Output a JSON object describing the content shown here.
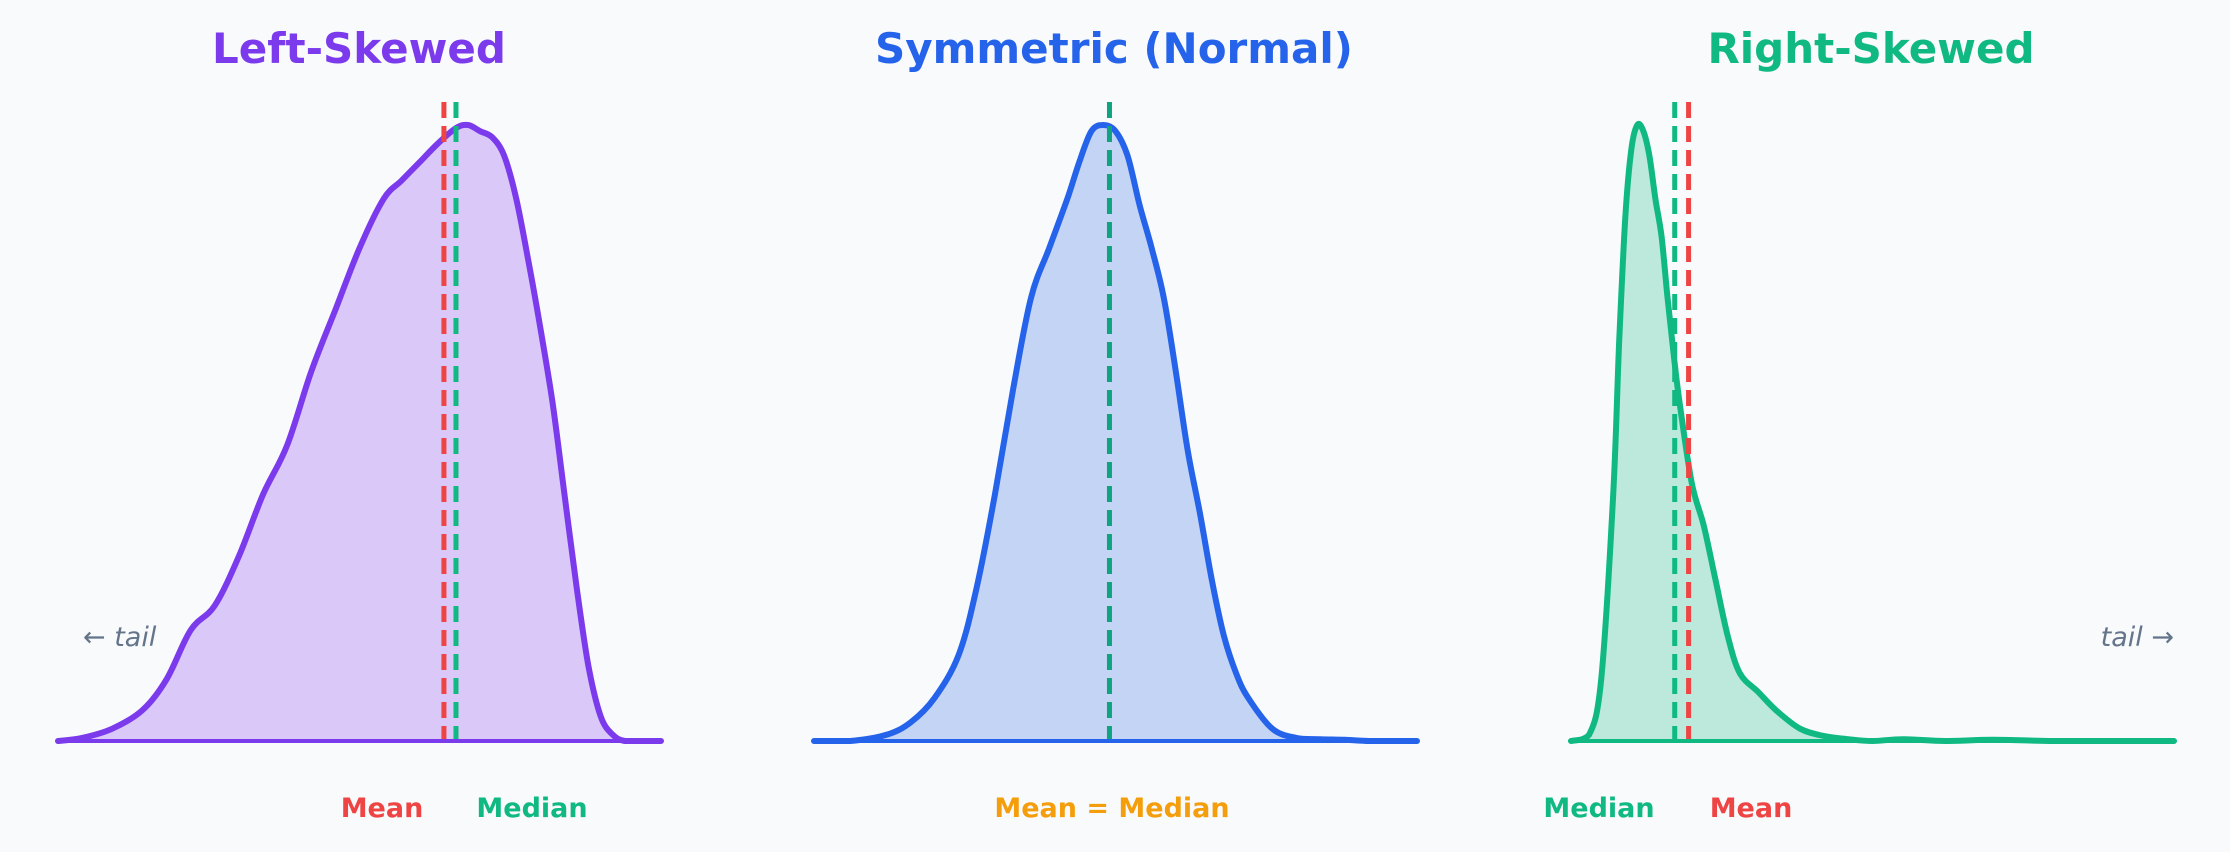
{
  "figure": {
    "background": "#f8fafc"
  },
  "panels": {
    "left": {
      "title": "Left-Skewed",
      "color": "#7c3aed",
      "fill": "#d9c8f8",
      "mean_label": "Mean",
      "median_label": "Median",
      "tail_label": "← tail"
    },
    "center": {
      "title": "Symmetric (Normal)",
      "color": "#2563eb",
      "fill": "#c3d4f5",
      "equal_label": "Mean = Median"
    },
    "right": {
      "title": "Right-Skewed",
      "color": "#10b981",
      "fill": "#bce9db",
      "mean_label": "Mean",
      "median_label": "Median",
      "tail_label": "tail →"
    }
  },
  "colors": {
    "mean": "#ef4444",
    "median": "#10b981",
    "median_symmetric": "#10a37f",
    "equal": "#f59e0b",
    "tail": "#64748b"
  },
  "chart_data": [
    {
      "type": "area",
      "title": "Left-Skewed",
      "xlim": [
        0,
        1
      ],
      "ylim": [
        0,
        1
      ],
      "x": [
        0.0,
        0.04,
        0.09,
        0.14,
        0.18,
        0.22,
        0.26,
        0.3,
        0.34,
        0.38,
        0.42,
        0.46,
        0.5,
        0.54,
        0.57,
        0.6,
        0.63,
        0.66,
        0.68,
        0.7,
        0.72,
        0.74,
        0.76,
        0.78,
        0.8,
        0.82,
        0.84,
        0.86,
        0.88,
        0.9,
        0.92,
        0.94,
        0.97,
        1.0
      ],
      "y": [
        0.0,
        0.005,
        0.02,
        0.05,
        0.1,
        0.18,
        0.22,
        0.3,
        0.4,
        0.48,
        0.6,
        0.7,
        0.8,
        0.88,
        0.91,
        0.94,
        0.97,
        0.995,
        1.0,
        0.99,
        0.98,
        0.95,
        0.88,
        0.78,
        0.67,
        0.55,
        0.4,
        0.25,
        0.12,
        0.04,
        0.01,
        0.0,
        0.0,
        0.0
      ],
      "mean": 0.64,
      "median": 0.66
    },
    {
      "type": "area",
      "title": "Symmetric (Normal)",
      "xlim": [
        0,
        1
      ],
      "ylim": [
        0,
        1
      ],
      "x": [
        0.0,
        0.06,
        0.12,
        0.16,
        0.2,
        0.24,
        0.27,
        0.3,
        0.33,
        0.36,
        0.39,
        0.42,
        0.44,
        0.46,
        0.48,
        0.5,
        0.52,
        0.54,
        0.56,
        0.58,
        0.6,
        0.62,
        0.64,
        0.66,
        0.68,
        0.7,
        0.72,
        0.76,
        0.8,
        0.84,
        0.88,
        0.92,
        0.96,
        1.0
      ],
      "y": [
        0.0,
        0.0,
        0.01,
        0.03,
        0.07,
        0.14,
        0.25,
        0.4,
        0.57,
        0.72,
        0.8,
        0.88,
        0.94,
        0.99,
        1.0,
        0.99,
        0.95,
        0.87,
        0.8,
        0.72,
        0.6,
        0.47,
        0.37,
        0.26,
        0.17,
        0.11,
        0.07,
        0.02,
        0.005,
        0.003,
        0.002,
        0.0,
        0.0,
        0.0
      ],
      "mean": 0.49,
      "median": 0.49
    },
    {
      "type": "area",
      "title": "Right-Skewed",
      "xlim": [
        0,
        1
      ],
      "ylim": [
        0,
        1
      ],
      "x": [
        0.0,
        0.03,
        0.05,
        0.07,
        0.08,
        0.09,
        0.1,
        0.11,
        0.12,
        0.13,
        0.14,
        0.15,
        0.16,
        0.17,
        0.18,
        0.2,
        0.22,
        0.24,
        0.26,
        0.28,
        0.31,
        0.34,
        0.38,
        0.42,
        0.46,
        0.5,
        0.55,
        0.62,
        0.7,
        0.8,
        0.9,
        1.0
      ],
      "y": [
        0.0,
        0.01,
        0.1,
        0.4,
        0.65,
        0.85,
        0.96,
        1.0,
        0.99,
        0.95,
        0.88,
        0.82,
        0.72,
        0.63,
        0.55,
        0.42,
        0.35,
        0.26,
        0.17,
        0.11,
        0.08,
        0.05,
        0.02,
        0.008,
        0.003,
        0.0,
        0.003,
        0.0,
        0.002,
        0.0,
        0.0,
        0.0
      ],
      "mean": 0.195,
      "median": 0.172
    }
  ]
}
